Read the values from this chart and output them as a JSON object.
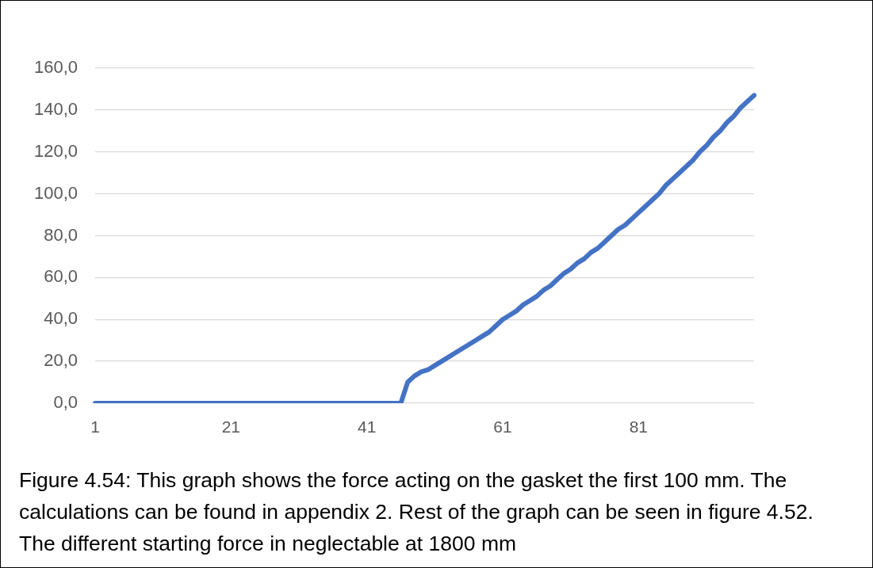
{
  "chart_data": {
    "type": "line",
    "categories": [
      "1",
      null,
      null,
      null,
      null,
      null,
      null,
      null,
      null,
      null,
      null,
      null,
      null,
      null,
      null,
      null,
      null,
      null,
      null,
      null,
      "21",
      null,
      null,
      null,
      null,
      null,
      null,
      null,
      null,
      null,
      null,
      null,
      null,
      null,
      null,
      null,
      null,
      null,
      null,
      null,
      "41",
      null,
      null,
      null,
      null,
      null,
      null,
      null,
      null,
      null,
      null,
      null,
      null,
      null,
      null,
      null,
      null,
      null,
      null,
      null,
      "61",
      null,
      null,
      null,
      null,
      null,
      null,
      null,
      null,
      null,
      null,
      null,
      null,
      null,
      null,
      null,
      null,
      null,
      null,
      null,
      "81",
      null,
      null,
      null,
      null,
      null,
      null,
      null,
      null,
      null,
      null,
      null,
      null,
      null,
      null,
      null,
      null,
      null
    ],
    "series": [
      {
        "color": "#4472c4",
        "values": [
          0,
          0,
          0,
          0,
          0,
          0,
          0,
          0,
          0,
          0,
          0,
          0,
          0,
          0,
          0,
          0,
          0,
          0,
          0,
          0,
          0,
          0,
          0,
          0,
          0,
          0,
          0,
          0,
          0,
          0,
          0,
          0,
          0,
          0,
          0,
          0,
          0,
          0,
          0,
          0,
          0,
          0,
          0,
          0,
          0,
          0,
          10,
          13,
          15,
          16,
          18,
          20,
          22,
          24,
          26,
          28,
          30,
          32,
          34,
          37,
          40,
          42,
          44,
          47,
          49,
          51,
          54,
          56,
          59,
          62,
          64,
          67,
          69,
          72,
          74,
          77,
          80,
          83,
          85,
          88,
          91,
          94,
          97,
          100,
          104,
          107,
          110,
          113,
          116,
          120,
          123,
          127,
          130,
          134,
          137,
          141,
          144,
          147
        ]
      }
    ],
    "ylim": [
      0,
      160
    ],
    "yticks": [
      {
        "value": 0,
        "label": "0,0"
      },
      {
        "value": 20,
        "label": "20,0"
      },
      {
        "value": 40,
        "label": "40,0"
      },
      {
        "value": 60,
        "label": "60,0"
      },
      {
        "value": 80,
        "label": "80,0"
      },
      {
        "value": 100,
        "label": "100,0"
      },
      {
        "value": 120,
        "label": "120,0"
      },
      {
        "value": 140,
        "label": "140,0"
      },
      {
        "value": 160,
        "label": "160,0"
      }
    ],
    "grid": "y",
    "annotations": [
      "Figure 4.54: This graph shows the force acting on the gasket the first 100 mm. The calculations can be found in appendix 2. Rest of the graph can be seen in figure 4.52. The different starting force in neglectable at 1800 mm"
    ]
  }
}
